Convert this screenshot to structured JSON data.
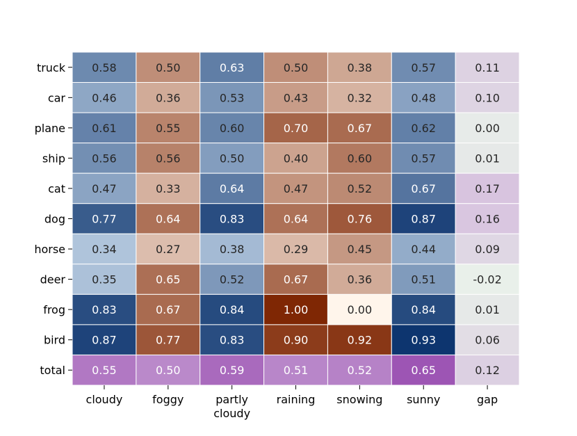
{
  "chart_data": {
    "type": "heatmap",
    "rows": [
      "truck",
      "car",
      "plane",
      "ship",
      "cat",
      "dog",
      "horse",
      "deer",
      "frog",
      "bird",
      "total"
    ],
    "columns": [
      {
        "label": "cloudy",
        "label_lines": [
          "cloudy"
        ]
      },
      {
        "label": "foggy",
        "label_lines": [
          "foggy"
        ]
      },
      {
        "label": "partly cloudy",
        "label_lines": [
          "partly",
          "cloudy"
        ]
      },
      {
        "label": "raining",
        "label_lines": [
          "raining"
        ]
      },
      {
        "label": "snowing",
        "label_lines": [
          "snowing"
        ]
      },
      {
        "label": "sunny",
        "label_lines": [
          "sunny"
        ]
      },
      {
        "label": "gap",
        "label_lines": [
          "gap"
        ]
      }
    ],
    "values": [
      [
        0.58,
        0.5,
        0.63,
        0.5,
        0.38,
        0.57,
        0.11
      ],
      [
        0.46,
        0.36,
        0.53,
        0.43,
        0.32,
        0.48,
        0.1
      ],
      [
        0.61,
        0.55,
        0.6,
        0.7,
        0.67,
        0.62,
        0.0
      ],
      [
        0.56,
        0.56,
        0.5,
        0.4,
        0.6,
        0.57,
        0.01
      ],
      [
        0.47,
        0.33,
        0.64,
        0.47,
        0.52,
        0.67,
        0.17
      ],
      [
        0.77,
        0.64,
        0.83,
        0.64,
        0.76,
        0.87,
        0.16
      ],
      [
        0.34,
        0.27,
        0.38,
        0.29,
        0.45,
        0.44,
        0.09
      ],
      [
        0.35,
        0.65,
        0.52,
        0.67,
        0.36,
        0.51,
        -0.02
      ],
      [
        0.83,
        0.67,
        0.84,
        1.0,
        0.0,
        0.84,
        0.01
      ],
      [
        0.87,
        0.77,
        0.83,
        0.9,
        0.92,
        0.93,
        0.06
      ],
      [
        0.55,
        0.5,
        0.59,
        0.51,
        0.52,
        0.65,
        0.12
      ]
    ],
    "color_groups": {
      "blue_columns": [
        "cloudy",
        "partly cloudy",
        "sunny"
      ],
      "orange_columns": [
        "foggy",
        "raining",
        "snowing"
      ],
      "purple_rows": [
        "total"
      ],
      "gap_column": [
        "gap"
      ]
    },
    "colors": {
      "blue_light": "#d2e3f3",
      "blue_dark": "#08306b",
      "orange_light": "#fff5eb",
      "orange_dark": "#7f2704",
      "purple_light": "#e4d4ea",
      "purple_dark": "#9d55b4",
      "gap_light": "#e9f0ea",
      "gap_dark": "#d8c4df",
      "cell_border": "#ffffff",
      "text_dark": "#262626",
      "text_light": "#ffffff"
    },
    "value_format": "2 decimals",
    "grid": false,
    "legend": "none"
  }
}
